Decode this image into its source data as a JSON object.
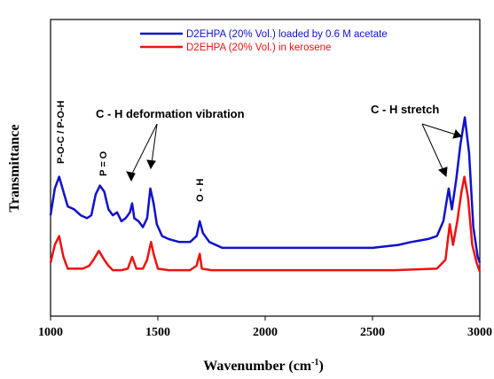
{
  "chart_data": {
    "type": "line",
    "xlabel_main": "Wavenumber (cm",
    "xlabel_sup": "-1",
    "xlabel_close": ")",
    "ylabel": "Transmittance",
    "xlim": [
      1000,
      3000
    ],
    "ylim": [
      0,
      100
    ],
    "x_ticks": [
      "1000",
      "1500",
      "2000",
      "2500",
      "3000"
    ],
    "legend_position": "top-right",
    "grid": false,
    "series": [
      {
        "name": "D2EHPA (20% Vol.) loaded by 0.6 M acetate",
        "color": "#1010cc",
        "points": [
          [
            1000,
            34
          ],
          [
            1020,
            43
          ],
          [
            1040,
            47
          ],
          [
            1060,
            42
          ],
          [
            1080,
            37
          ],
          [
            1110,
            36
          ],
          [
            1140,
            34
          ],
          [
            1170,
            33
          ],
          [
            1190,
            34
          ],
          [
            1210,
            41
          ],
          [
            1230,
            44
          ],
          [
            1250,
            42
          ],
          [
            1270,
            36
          ],
          [
            1290,
            34
          ],
          [
            1310,
            35
          ],
          [
            1330,
            32
          ],
          [
            1350,
            33
          ],
          [
            1370,
            35
          ],
          [
            1380,
            38
          ],
          [
            1390,
            33
          ],
          [
            1410,
            32
          ],
          [
            1430,
            30
          ],
          [
            1450,
            33
          ],
          [
            1465,
            43
          ],
          [
            1480,
            38
          ],
          [
            1495,
            31
          ],
          [
            1520,
            27
          ],
          [
            1550,
            26
          ],
          [
            1600,
            25
          ],
          [
            1650,
            25
          ],
          [
            1680,
            27
          ],
          [
            1695,
            32
          ],
          [
            1710,
            28
          ],
          [
            1740,
            25
          ],
          [
            1800,
            23
          ],
          [
            1900,
            23
          ],
          [
            2000,
            23
          ],
          [
            2100,
            23
          ],
          [
            2200,
            23
          ],
          [
            2300,
            23
          ],
          [
            2400,
            23
          ],
          [
            2500,
            23
          ],
          [
            2560,
            23.5
          ],
          [
            2620,
            24
          ],
          [
            2680,
            25
          ],
          [
            2720,
            25.5
          ],
          [
            2760,
            26
          ],
          [
            2800,
            27
          ],
          [
            2830,
            32
          ],
          [
            2855,
            43
          ],
          [
            2870,
            36
          ],
          [
            2890,
            46
          ],
          [
            2910,
            58
          ],
          [
            2930,
            67
          ],
          [
            2950,
            55
          ],
          [
            2970,
            30
          ],
          [
            2990,
            20
          ],
          [
            3000,
            18
          ]
        ]
      },
      {
        "name": "D2EHPA (20% Vol.) in kerosene",
        "color": "#ee1111",
        "points": [
          [
            1000,
            18
          ],
          [
            1020,
            24
          ],
          [
            1040,
            27
          ],
          [
            1060,
            20
          ],
          [
            1080,
            16
          ],
          [
            1100,
            16
          ],
          [
            1150,
            16
          ],
          [
            1180,
            17
          ],
          [
            1200,
            19
          ],
          [
            1225,
            22
          ],
          [
            1250,
            19
          ],
          [
            1270,
            17
          ],
          [
            1290,
            15.5
          ],
          [
            1330,
            15.5
          ],
          [
            1360,
            16
          ],
          [
            1380,
            20
          ],
          [
            1400,
            16
          ],
          [
            1430,
            16
          ],
          [
            1450,
            19
          ],
          [
            1468,
            25
          ],
          [
            1480,
            21
          ],
          [
            1500,
            16
          ],
          [
            1550,
            15.5
          ],
          [
            1650,
            15.5
          ],
          [
            1680,
            17
          ],
          [
            1695,
            21
          ],
          [
            1705,
            16
          ],
          [
            1750,
            15.5
          ],
          [
            1800,
            15.5
          ],
          [
            2000,
            15.5
          ],
          [
            2200,
            15.5
          ],
          [
            2400,
            15.5
          ],
          [
            2600,
            15.5
          ],
          [
            2800,
            16
          ],
          [
            2840,
            19
          ],
          [
            2860,
            31
          ],
          [
            2875,
            24
          ],
          [
            2895,
            32
          ],
          [
            2915,
            42
          ],
          [
            2928,
            47
          ],
          [
            2945,
            40
          ],
          [
            2965,
            24
          ],
          [
            2985,
            18
          ],
          [
            3000,
            15
          ]
        ]
      }
    ],
    "annotations": [
      {
        "text": "P-O-C / P-O-H",
        "rotated": true
      },
      {
        "text": "P = O",
        "rotated": true
      },
      {
        "text": "C - H  deformation vibration",
        "rotated": false
      },
      {
        "text": "O - H",
        "rotated": true
      },
      {
        "text": "C - H  stretch",
        "rotated": false
      }
    ]
  }
}
